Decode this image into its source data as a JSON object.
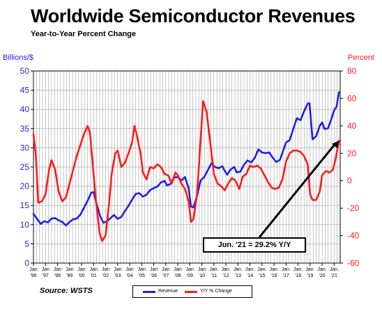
{
  "title": "Worldwide Semiconductor Revenues",
  "subtitle": "Year-to-Year Percent Change",
  "source": "Source: WSTS",
  "callout": "Jun. '21 = 29.2% Y/Y",
  "colors": {
    "revenue": "#1f1fe6",
    "yoy": "#ff1a1a",
    "grid": "#8c8c8c",
    "arrow": "#000000"
  },
  "chart_data": {
    "type": "line",
    "left_axis": {
      "label": "Billions/$",
      "range": [
        0,
        50
      ],
      "ticks": [
        "0",
        "5",
        "10",
        "15",
        "20",
        "25",
        "30",
        "35",
        "40",
        "45",
        "50"
      ]
    },
    "right_axis": {
      "label": "Percent",
      "range": [
        -60,
        80
      ],
      "ticks": [
        "-60",
        "-40",
        "-20",
        "0",
        "20",
        "40",
        "60",
        "80"
      ]
    },
    "x_range": [
      1996.0,
      2021.5
    ],
    "x_tick_labels": [
      {
        "top": "Jan",
        "bottom": "'96"
      },
      {
        "top": "Jan",
        "bottom": "'97"
      },
      {
        "top": "Jan",
        "bottom": "'98"
      },
      {
        "top": "Jan",
        "bottom": "'99"
      },
      {
        "top": "Jan",
        "bottom": "'00"
      },
      {
        "top": "Jan",
        "bottom": "'01"
      },
      {
        "top": "Jan",
        "bottom": "'02"
      },
      {
        "top": "Jan",
        "bottom": "'03"
      },
      {
        "top": "Jan",
        "bottom": "'04"
      },
      {
        "top": "Jan",
        "bottom": "'05"
      },
      {
        "top": "Jan",
        "bottom": "'06"
      },
      {
        "top": "Jan",
        "bottom": "'07"
      },
      {
        "top": "Jan",
        "bottom": "'08"
      },
      {
        "top": "Jan",
        "bottom": "'09"
      },
      {
        "top": "Jan",
        "bottom": "'10"
      },
      {
        "top": "Jan.",
        "bottom": "'11"
      },
      {
        "top": "Jan.",
        "bottom": "'12"
      },
      {
        "top": "Jan.",
        "bottom": "'13"
      },
      {
        "top": "Jan.",
        "bottom": "'14"
      },
      {
        "top": "Jan.",
        "bottom": "'15"
      },
      {
        "top": "Jan.",
        "bottom": "'16"
      },
      {
        "top": "Jan.",
        "bottom": "'17"
      },
      {
        "top": "Jan.",
        "bottom": "'18"
      },
      {
        "top": "Jan.",
        "bottom": "'19"
      },
      {
        "top": "Jan.",
        "bottom": "'20"
      },
      {
        "top": "Jan.",
        "bottom": "'21"
      }
    ],
    "grid": true,
    "series": [
      {
        "name": "Revenue",
        "axis": "left",
        "points": [
          [
            1996.0,
            12.8
          ],
          [
            1996.3,
            11.5
          ],
          [
            1996.6,
            10.2
          ],
          [
            1996.9,
            10.9
          ],
          [
            1997.2,
            10.6
          ],
          [
            1997.5,
            11.6
          ],
          [
            1997.8,
            11.7
          ],
          [
            1998.1,
            11.1
          ],
          [
            1998.4,
            10.7
          ],
          [
            1998.7,
            9.8
          ],
          [
            1999.0,
            10.7
          ],
          [
            1999.3,
            11.4
          ],
          [
            1999.6,
            11.6
          ],
          [
            1999.9,
            12.6
          ],
          [
            2000.2,
            14.4
          ],
          [
            2000.5,
            16.2
          ],
          [
            2000.8,
            18.3
          ],
          [
            2001.0,
            18.5
          ],
          [
            2001.2,
            16.0
          ],
          [
            2001.5,
            12.6
          ],
          [
            2001.8,
            10.5
          ],
          [
            2002.1,
            10.8
          ],
          [
            2002.4,
            11.7
          ],
          [
            2002.7,
            12.5
          ],
          [
            2003.0,
            11.5
          ],
          [
            2003.3,
            12.0
          ],
          [
            2003.6,
            13.5
          ],
          [
            2003.9,
            14.9
          ],
          [
            2004.2,
            16.5
          ],
          [
            2004.5,
            18.0
          ],
          [
            2004.8,
            18.2
          ],
          [
            2005.1,
            17.3
          ],
          [
            2005.4,
            17.8
          ],
          [
            2005.7,
            19.0
          ],
          [
            2006.0,
            19.5
          ],
          [
            2006.3,
            19.9
          ],
          [
            2006.6,
            21.0
          ],
          [
            2006.9,
            21.4
          ],
          [
            2007.1,
            20.2
          ],
          [
            2007.4,
            20.6
          ],
          [
            2007.7,
            22.3
          ],
          [
            2008.0,
            22.4
          ],
          [
            2008.3,
            21.5
          ],
          [
            2008.6,
            22.4
          ],
          [
            2008.9,
            19.5
          ],
          [
            2009.1,
            14.7
          ],
          [
            2009.3,
            14.5
          ],
          [
            2009.6,
            17.5
          ],
          [
            2009.9,
            21.5
          ],
          [
            2010.2,
            22.4
          ],
          [
            2010.5,
            24.2
          ],
          [
            2010.8,
            26.0
          ],
          [
            2011.1,
            25.0
          ],
          [
            2011.4,
            24.7
          ],
          [
            2011.7,
            25.2
          ],
          [
            2011.9,
            24.0
          ],
          [
            2012.1,
            23.0
          ],
          [
            2012.4,
            24.4
          ],
          [
            2012.7,
            25.0
          ],
          [
            2012.9,
            23.6
          ],
          [
            2013.2,
            23.8
          ],
          [
            2013.5,
            25.6
          ],
          [
            2013.8,
            26.7
          ],
          [
            2014.1,
            26.2
          ],
          [
            2014.4,
            27.4
          ],
          [
            2014.7,
            29.6
          ],
          [
            2015.0,
            28.8
          ],
          [
            2015.3,
            28.6
          ],
          [
            2015.6,
            28.8
          ],
          [
            2015.9,
            27.4
          ],
          [
            2016.2,
            26.3
          ],
          [
            2016.5,
            26.9
          ],
          [
            2016.8,
            29.6
          ],
          [
            2017.0,
            31.4
          ],
          [
            2017.3,
            32.0
          ],
          [
            2017.6,
            34.9
          ],
          [
            2017.9,
            37.7
          ],
          [
            2018.2,
            37.2
          ],
          [
            2018.5,
            39.5
          ],
          [
            2018.8,
            41.5
          ],
          [
            2018.95,
            41.6
          ],
          [
            2019.2,
            32.2
          ],
          [
            2019.5,
            33.0
          ],
          [
            2019.8,
            35.7
          ],
          [
            2020.0,
            36.6
          ],
          [
            2020.2,
            34.9
          ],
          [
            2020.5,
            35.1
          ],
          [
            2020.8,
            37.8
          ],
          [
            2021.0,
            39.8
          ],
          [
            2021.2,
            40.7
          ],
          [
            2021.4,
            44.5
          ]
        ]
      },
      {
        "name": "Y/Y % Change",
        "axis": "right",
        "points": [
          [
            1996.0,
            34
          ],
          [
            1996.2,
            18
          ],
          [
            1996.4,
            -16
          ],
          [
            1996.7,
            -15
          ],
          [
            1997.0,
            -10
          ],
          [
            1997.3,
            8
          ],
          [
            1997.5,
            15
          ],
          [
            1997.8,
            8
          ],
          [
            1998.1,
            -8
          ],
          [
            1998.4,
            -15
          ],
          [
            1998.7,
            -12
          ],
          [
            1999.0,
            -2
          ],
          [
            1999.3,
            8
          ],
          [
            1999.6,
            18
          ],
          [
            1999.9,
            26
          ],
          [
            2000.2,
            34
          ],
          [
            2000.5,
            40
          ],
          [
            2000.7,
            35
          ],
          [
            2000.9,
            15
          ],
          [
            2001.2,
            -15
          ],
          [
            2001.5,
            -38
          ],
          [
            2001.7,
            -44
          ],
          [
            2002.0,
            -40
          ],
          [
            2002.3,
            -15
          ],
          [
            2002.5,
            5
          ],
          [
            2002.8,
            20
          ],
          [
            2003.0,
            22
          ],
          [
            2003.3,
            10
          ],
          [
            2003.6,
            13
          ],
          [
            2003.9,
            20
          ],
          [
            2004.2,
            28
          ],
          [
            2004.4,
            40
          ],
          [
            2004.6,
            33
          ],
          [
            2004.9,
            20
          ],
          [
            2005.1,
            6
          ],
          [
            2005.4,
            1
          ],
          [
            2005.7,
            10
          ],
          [
            2006.0,
            9
          ],
          [
            2006.3,
            12
          ],
          [
            2006.6,
            10
          ],
          [
            2006.9,
            5
          ],
          [
            2007.2,
            4
          ],
          [
            2007.5,
            -2
          ],
          [
            2007.8,
            6
          ],
          [
            2008.0,
            4
          ],
          [
            2008.3,
            -2
          ],
          [
            2008.6,
            -6
          ],
          [
            2008.9,
            -15
          ],
          [
            2009.1,
            -30
          ],
          [
            2009.3,
            -28
          ],
          [
            2009.6,
            -10
          ],
          [
            2009.9,
            30
          ],
          [
            2010.1,
            58
          ],
          [
            2010.4,
            50
          ],
          [
            2010.7,
            28
          ],
          [
            2011.0,
            5
          ],
          [
            2011.3,
            -2
          ],
          [
            2011.6,
            -4
          ],
          [
            2011.9,
            -7
          ],
          [
            2012.2,
            -2
          ],
          [
            2012.5,
            2
          ],
          [
            2012.8,
            0
          ],
          [
            2013.1,
            -6
          ],
          [
            2013.4,
            3
          ],
          [
            2013.7,
            5
          ],
          [
            2014.0,
            11
          ],
          [
            2014.3,
            10
          ],
          [
            2014.6,
            11
          ],
          [
            2014.9,
            9
          ],
          [
            2015.2,
            4
          ],
          [
            2015.5,
            -1
          ],
          [
            2015.8,
            -5
          ],
          [
            2016.1,
            -6
          ],
          [
            2016.4,
            -5
          ],
          [
            2016.7,
            1
          ],
          [
            2017.0,
            14
          ],
          [
            2017.3,
            20
          ],
          [
            2017.6,
            22
          ],
          [
            2017.9,
            22
          ],
          [
            2018.2,
            21
          ],
          [
            2018.5,
            18
          ],
          [
            2018.8,
            12
          ],
          [
            2019.0,
            -10
          ],
          [
            2019.2,
            -14
          ],
          [
            2019.5,
            -14
          ],
          [
            2019.8,
            -8
          ],
          [
            2020.0,
            4
          ],
          [
            2020.3,
            7
          ],
          [
            2020.6,
            6
          ],
          [
            2020.9,
            8
          ],
          [
            2021.1,
            15
          ],
          [
            2021.4,
            29.2
          ]
        ]
      }
    ],
    "legend": {
      "placement": "bottom-center",
      "entries": [
        "Revenue",
        "Y/Y % Change"
      ]
    },
    "annotation": {
      "text": "Jun. '21 = 29.2% Y/Y",
      "points_to": [
        2021.4,
        29.2
      ]
    }
  }
}
